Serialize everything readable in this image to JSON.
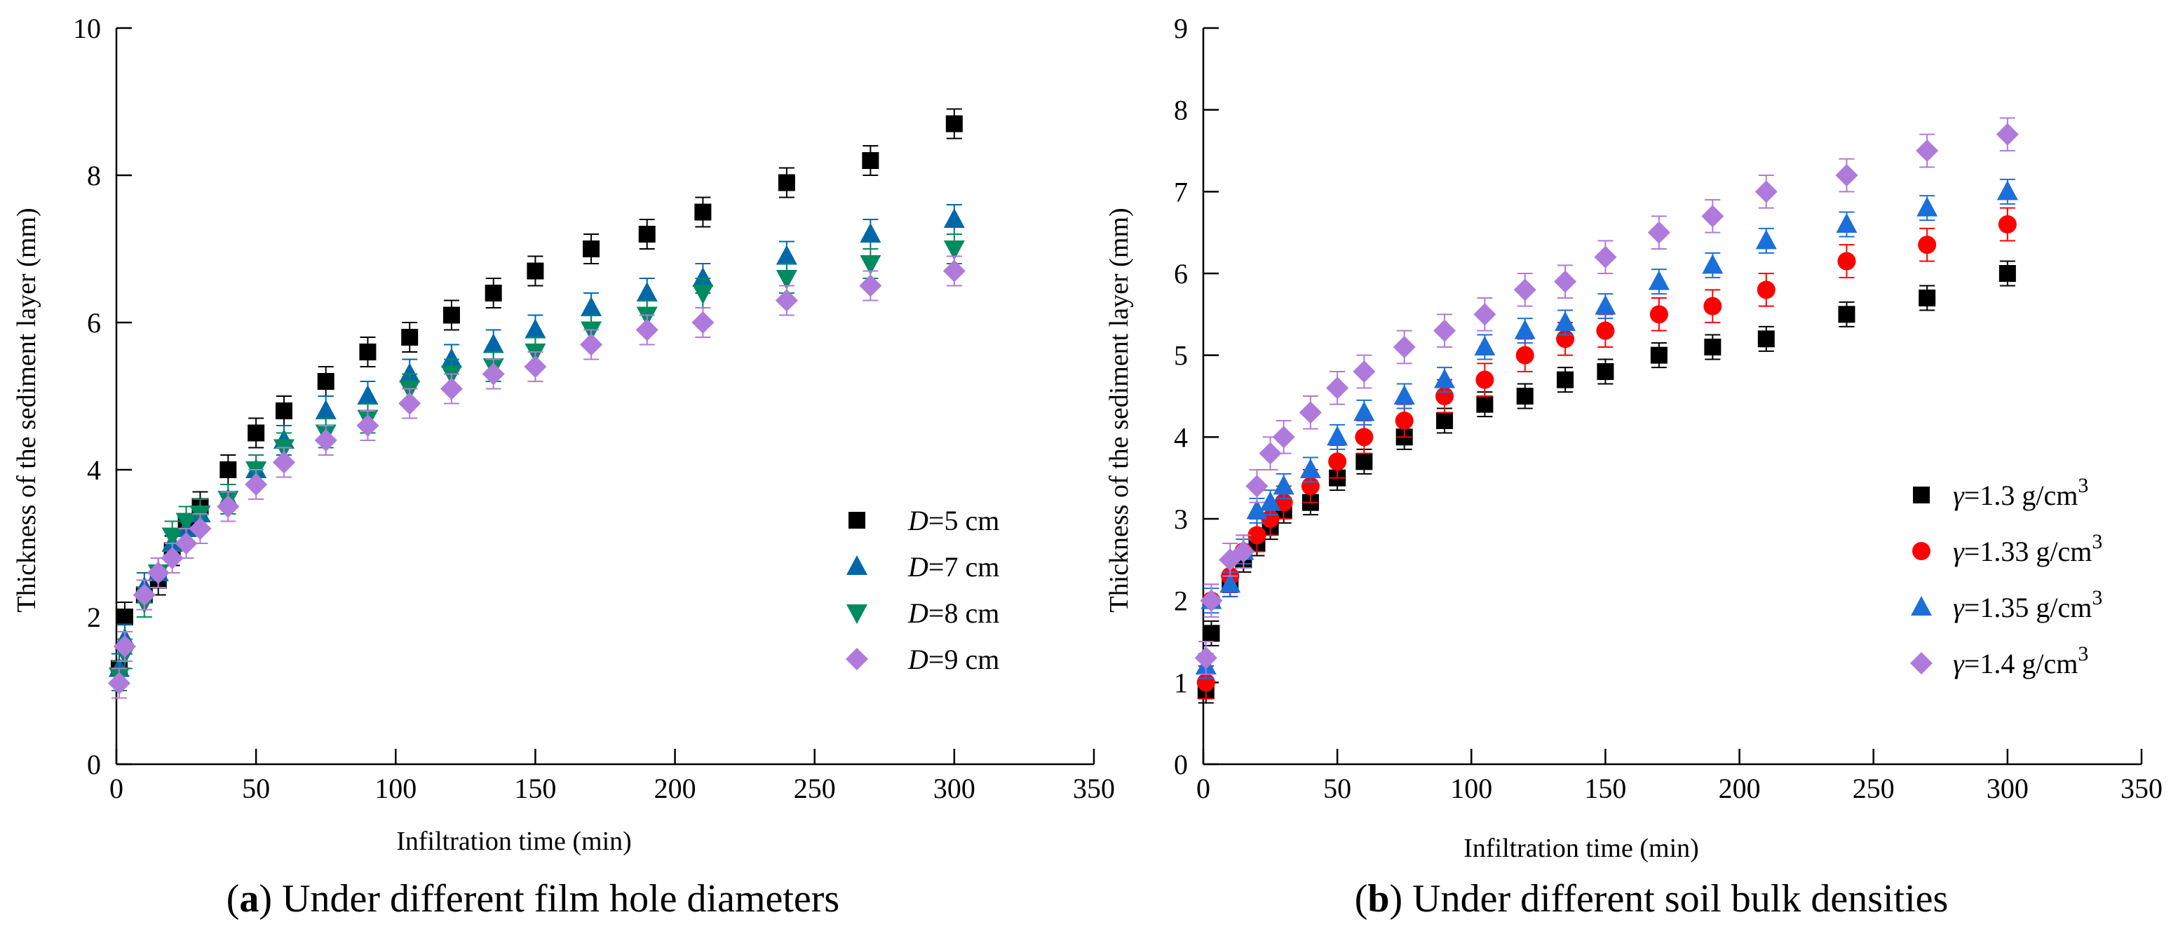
{
  "chart_data": [
    {
      "type": "scatter",
      "panel_label": "a",
      "caption": " Under different film hole diameters",
      "xlabel": "Infiltration time (min)",
      "ylabel": "Thickness of the sediment layer (mm)",
      "xlim": [
        0,
        350
      ],
      "ylim": [
        0,
        10
      ],
      "xticks": [
        0,
        50,
        100,
        150,
        200,
        250,
        300,
        350
      ],
      "yticks": [
        0,
        2,
        4,
        6,
        8,
        10
      ],
      "grid": false,
      "legend_position": "right-middle",
      "x": [
        1,
        3,
        10,
        15,
        20,
        25,
        30,
        40,
        50,
        60,
        75,
        90,
        105,
        120,
        135,
        150,
        170,
        190,
        210,
        240,
        270,
        300
      ],
      "series": [
        {
          "var": "D",
          "text": "=5 cm",
          "marker": "square",
          "color": "#000000",
          "error": 0.2,
          "values": [
            1.3,
            2.0,
            2.3,
            2.5,
            2.9,
            3.3,
            3.5,
            4.0,
            4.5,
            4.8,
            5.2,
            5.6,
            5.8,
            6.1,
            6.4,
            6.7,
            7.0,
            7.2,
            7.5,
            7.9,
            8.2,
            8.7
          ]
        },
        {
          "var": "D",
          "text": "=7 cm",
          "marker": "triangle-up",
          "color": "#0068AA",
          "error": 0.2,
          "values": [
            1.3,
            1.7,
            2.4,
            2.6,
            3.0,
            3.2,
            3.4,
            3.6,
            4.0,
            4.4,
            4.8,
            5.0,
            5.3,
            5.5,
            5.7,
            5.9,
            6.2,
            6.4,
            6.6,
            6.9,
            7.2,
            7.4
          ]
        },
        {
          "var": "D",
          "text": "=8 cm",
          "marker": "triangle-down",
          "color": "#008B5F",
          "error": 0.2,
          "values": [
            1.2,
            1.5,
            2.2,
            2.6,
            3.1,
            3.3,
            3.4,
            3.6,
            4.0,
            4.3,
            4.5,
            4.7,
            5.1,
            5.3,
            5.4,
            5.6,
            5.9,
            6.1,
            6.4,
            6.6,
            6.8,
            7.0
          ]
        },
        {
          "var": "D",
          "text": "=9 cm",
          "marker": "diamond",
          "color": "#B07ADC",
          "error": 0.2,
          "values": [
            1.1,
            1.6,
            2.3,
            2.6,
            2.8,
            3.0,
            3.2,
            3.5,
            3.8,
            4.1,
            4.4,
            4.6,
            4.9,
            5.1,
            5.3,
            5.4,
            5.7,
            5.9,
            6.0,
            6.3,
            6.5,
            6.7
          ]
        }
      ]
    },
    {
      "type": "scatter",
      "panel_label": "b",
      "caption": " Under different soil bulk densities",
      "xlabel": "Infiltration time (min)",
      "ylabel": "Thickness of the sediment layer (mm)",
      "xlim": [
        0,
        350
      ],
      "ylim": [
        0,
        9
      ],
      "xticks": [
        0,
        50,
        100,
        150,
        200,
        250,
        300,
        350
      ],
      "yticks": [
        0,
        1,
        2,
        3,
        4,
        5,
        6,
        7,
        8,
        9
      ],
      "grid": false,
      "legend_position": "right-middle",
      "x": [
        1,
        3,
        10,
        15,
        20,
        25,
        30,
        40,
        50,
        60,
        75,
        90,
        105,
        120,
        135,
        150,
        170,
        190,
        210,
        240,
        270,
        300
      ],
      "series": [
        {
          "var": "γ",
          "text": "=1.3 g/cm",
          "sup": "3",
          "marker": "square",
          "color": "#000000",
          "error": 0.15,
          "values": [
            0.9,
            1.6,
            2.2,
            2.5,
            2.7,
            2.9,
            3.1,
            3.2,
            3.5,
            3.7,
            4.0,
            4.2,
            4.4,
            4.5,
            4.7,
            4.8,
            5.0,
            5.1,
            5.2,
            5.5,
            5.7,
            6.0
          ]
        },
        {
          "var": "γ",
          "text": "=1.33 g/cm",
          "sup": "3",
          "marker": "circle",
          "color": "#FF0000",
          "error": 0.2,
          "values": [
            1.0,
            2.0,
            2.3,
            2.6,
            2.8,
            3.0,
            3.2,
            3.4,
            3.7,
            4.0,
            4.2,
            4.5,
            4.7,
            5.0,
            5.2,
            5.3,
            5.5,
            5.6,
            5.8,
            6.15,
            6.35,
            6.6
          ]
        },
        {
          "var": "γ",
          "text": "=1.35 g/cm",
          "sup": "3",
          "marker": "triangle-up",
          "color": "#1B6FDB",
          "error": 0.15,
          "values": [
            1.2,
            2.0,
            2.2,
            2.6,
            3.1,
            3.2,
            3.4,
            3.6,
            4.0,
            4.3,
            4.5,
            4.7,
            5.1,
            5.3,
            5.4,
            5.6,
            5.9,
            6.1,
            6.4,
            6.6,
            6.8,
            7.0
          ]
        },
        {
          "var": "γ",
          "text": "=1.4 g/cm",
          "sup": "3",
          "marker": "diamond",
          "color": "#B07ADC",
          "error": 0.2,
          "values": [
            1.3,
            2.0,
            2.5,
            2.6,
            3.4,
            3.8,
            4.0,
            4.3,
            4.6,
            4.8,
            5.1,
            5.3,
            5.5,
            5.8,
            5.9,
            6.2,
            6.5,
            6.7,
            7.0,
            7.2,
            7.5,
            7.7
          ]
        }
      ]
    }
  ]
}
